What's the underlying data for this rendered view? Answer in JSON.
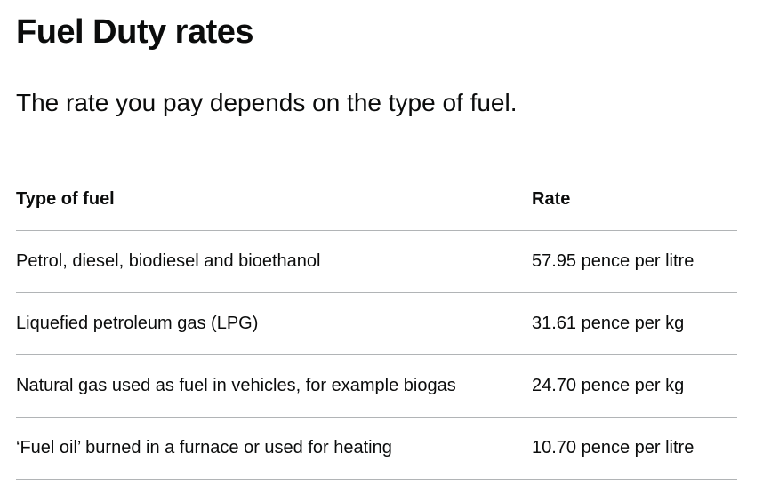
{
  "title": "Fuel Duty rates",
  "lead": "The rate you pay depends on the type of fuel.",
  "table": {
    "headers": [
      "Type of fuel",
      "Rate"
    ],
    "rows": [
      [
        "Petrol, diesel, biodiesel and bioethanol",
        "57.95 pence per litre"
      ],
      [
        "Liquefied petroleum gas (LPG)",
        "31.61 pence per kg"
      ],
      [
        "Natural gas used as fuel in vehicles, for example biogas",
        "24.70 pence per kg"
      ],
      [
        "‘Fuel oil’ burned in a furnace or used for heating",
        "10.70 pence per litre"
      ]
    ]
  }
}
